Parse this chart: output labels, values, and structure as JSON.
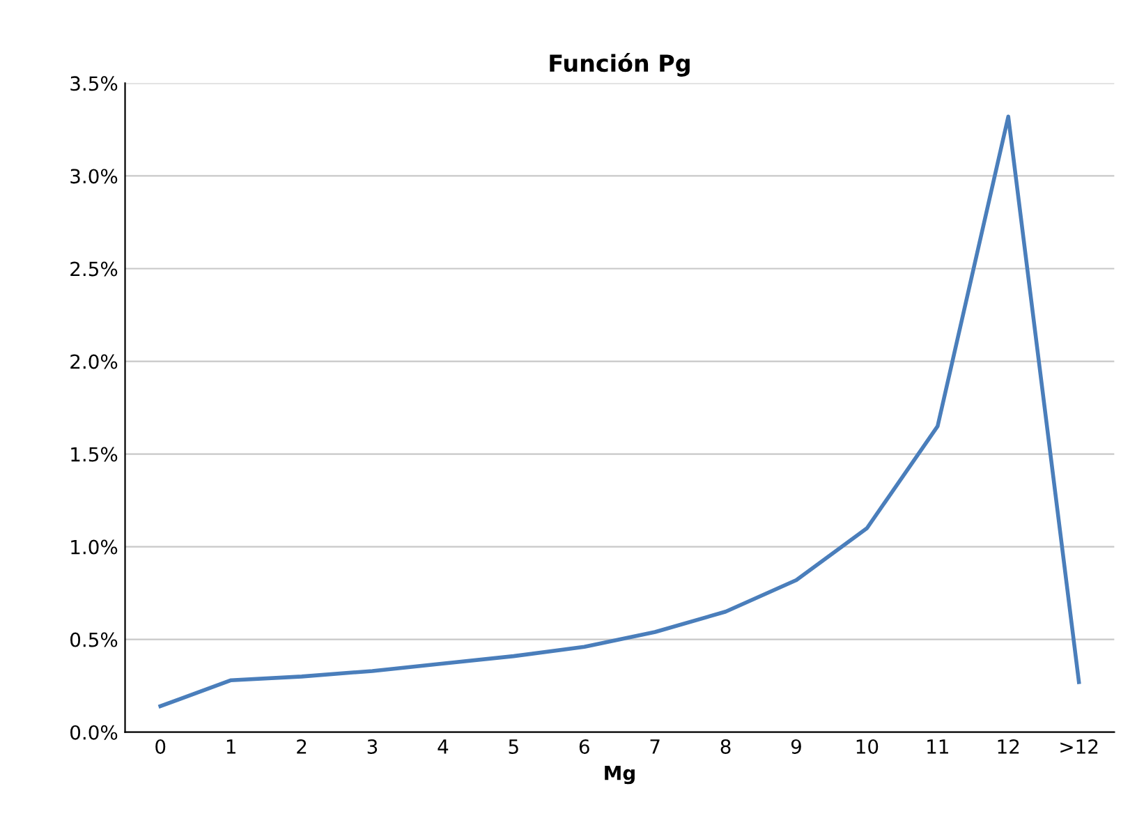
{
  "chart_data": {
    "type": "line",
    "title": "Función Pg",
    "xlabel": "Mg",
    "categories": [
      "0",
      "1",
      "2",
      "3",
      "4",
      "5",
      "6",
      "7",
      "8",
      "9",
      "10",
      "11",
      "12",
      ">12"
    ],
    "series": [
      {
        "color": "#4a7ebb",
        "values": [
          0.14,
          0.28,
          0.3,
          0.33,
          0.37,
          0.41,
          0.46,
          0.54,
          0.65,
          0.82,
          1.1,
          1.65,
          3.32,
          0.27
        ]
      }
    ],
    "ylim": [
      0,
      3.5
    ],
    "yticks": [
      {
        "value": 0,
        "label": "0.0%"
      },
      {
        "value": 0.5,
        "label": "0.5%"
      },
      {
        "value": 1.0,
        "label": "1.0%"
      },
      {
        "value": 1.5,
        "label": "1.5%"
      },
      {
        "value": 2.0,
        "label": "2.0%"
      },
      {
        "value": 2.5,
        "label": "2.5%"
      },
      {
        "value": 3.0,
        "label": "3.0%"
      },
      {
        "value": 3.5,
        "label": "3.5%"
      }
    ],
    "grid": "y",
    "marker": "none",
    "line_style": "solid"
  }
}
